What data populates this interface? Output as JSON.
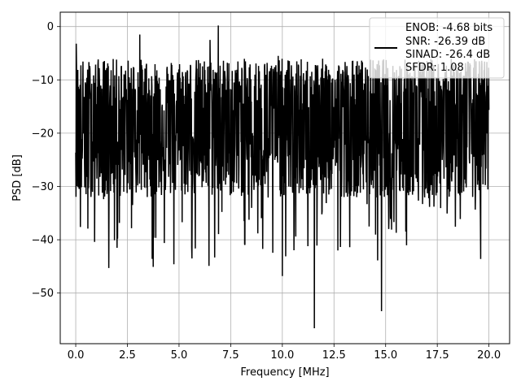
{
  "chart_data": {
    "type": "line",
    "xlabel": "Frequency [MHz]",
    "ylabel": "PSD [dB]",
    "xlim": [
      -0.75,
      21.0
    ],
    "ylim": [
      -59.5,
      2.7
    ],
    "x_ticks": [
      0.0,
      2.5,
      5.0,
      7.5,
      10.0,
      12.5,
      15.0,
      17.5,
      20.0
    ],
    "x_tick_labels": [
      "0.0",
      "2.5",
      "5.0",
      "7.5",
      "10.0",
      "12.5",
      "15.0",
      "17.5",
      "20.0"
    ],
    "y_ticks": [
      0,
      -10,
      -20,
      -30,
      -40,
      -50
    ],
    "y_tick_labels": [
      "0",
      "−10",
      "−20",
      "−30",
      "−40",
      "−50"
    ],
    "grid": true,
    "legend_position": "top-right",
    "series": [
      {
        "color": "#000000",
        "x_range": [
          0.0,
          20.0
        ],
        "points_count": 1600,
        "noise_floor_db": -18,
        "notable_peaks": [
          {
            "x": 0.02,
            "y": -3.2
          },
          {
            "x": 3.1,
            "y": -1.5
          },
          {
            "x": 6.9,
            "y": 0.2
          },
          {
            "x": 6.5,
            "y": -2.5
          },
          {
            "x": 9.8,
            "y": -5.5
          }
        ],
        "notable_dips": [
          {
            "x": 1.6,
            "y": -45.3
          },
          {
            "x": 3.75,
            "y": -45.1
          },
          {
            "x": 4.75,
            "y": -44.6
          },
          {
            "x": 6.45,
            "y": -44.9
          },
          {
            "x": 10.0,
            "y": -46.8
          },
          {
            "x": 11.55,
            "y": -56.6
          },
          {
            "x": 14.8,
            "y": -53.4
          },
          {
            "x": 19.6,
            "y": -43.6
          }
        ]
      }
    ],
    "legend": {
      "lines": [
        "ENOB: -4.68 bits",
        "SNR: -26.39 dB",
        "SINAD: -26.4 dB",
        "SFDR: 1.08"
      ]
    }
  }
}
